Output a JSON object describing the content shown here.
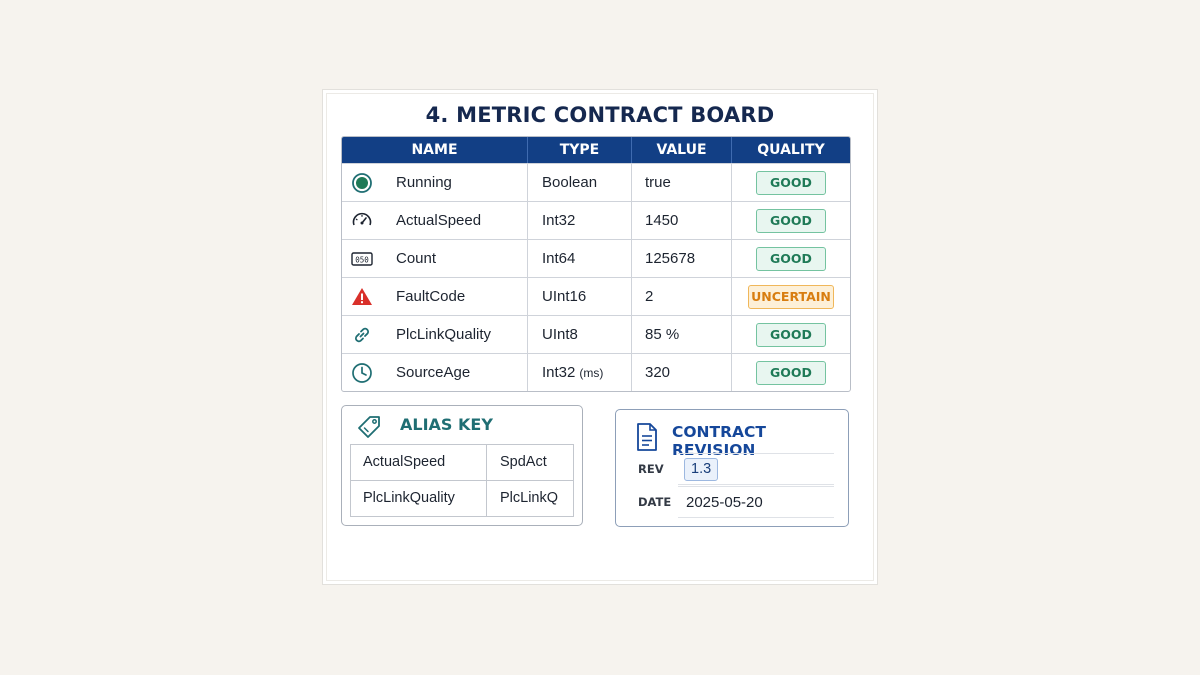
{
  "title": "4. METRIC CONTRACT BOARD",
  "table": {
    "headers": {
      "name": "NAME",
      "type": "TYPE",
      "value": "VALUE",
      "quality": "QUALITY"
    },
    "rows": [
      {
        "icon": "running-status-icon",
        "name": "Running",
        "type": "Boolean",
        "type_unit": "",
        "value": "true",
        "quality": "GOOD"
      },
      {
        "icon": "speedometer-icon",
        "name": "ActualSpeed",
        "type": "Int32",
        "type_unit": "",
        "value": "1450",
        "quality": "GOOD"
      },
      {
        "icon": "counter-icon",
        "name": "Count",
        "type": "Int64",
        "type_unit": "",
        "value": "125678",
        "quality": "GOOD"
      },
      {
        "icon": "warning-icon",
        "name": "FaultCode",
        "type": "UInt16",
        "type_unit": "",
        "value": "2",
        "quality": "UNCERTAIN"
      },
      {
        "icon": "link-icon",
        "name": "PlcLinkQuality",
        "type": "UInt8",
        "type_unit": "",
        "value": "85 %",
        "quality": "GOOD"
      },
      {
        "icon": "clock-icon",
        "name": "SourceAge",
        "type": "Int32",
        "type_unit": "(ms)",
        "value": "320",
        "quality": "GOOD"
      }
    ]
  },
  "alias_key": {
    "title": "ALIAS KEY",
    "rows": [
      {
        "name": "ActualSpeed",
        "alias": "SpdAct"
      },
      {
        "name": "PlcLinkQuality",
        "alias": "PlcLinkQ"
      }
    ]
  },
  "contract_revision": {
    "title": "CONTRACT REVISION",
    "rev_label": "REV",
    "rev_value": "1.3",
    "date_label": "DATE",
    "date_value": "2025-05-20"
  },
  "colors": {
    "header_bg": "#123f85",
    "good": "#1f7a57",
    "uncertain": "#d87d10",
    "title": "#15284f",
    "icon_teal": "#1f6e73"
  }
}
